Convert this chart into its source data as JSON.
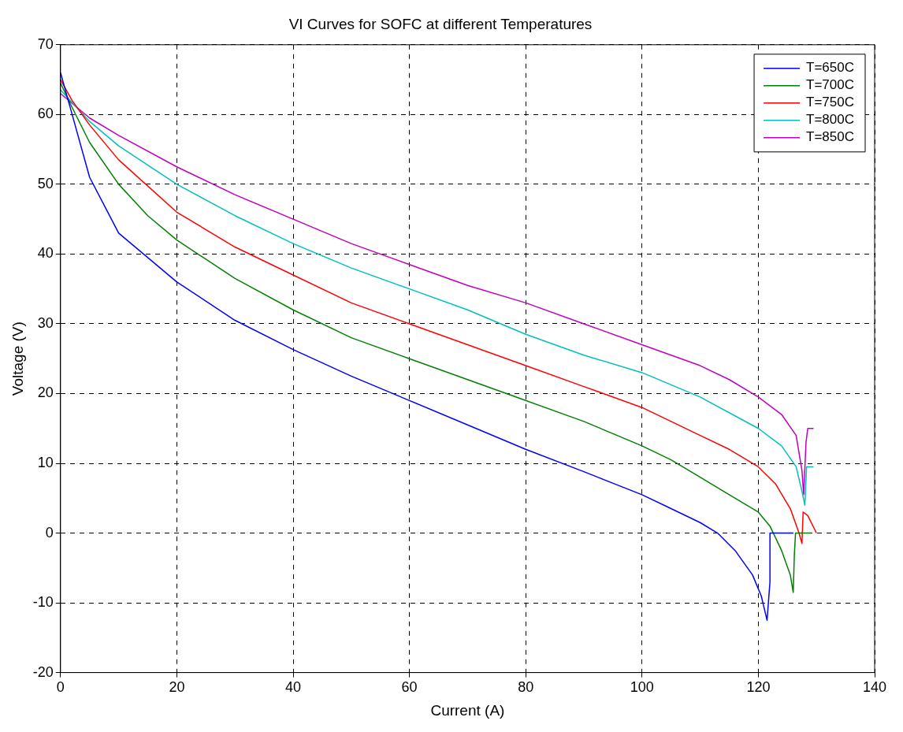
{
  "chart_data": {
    "type": "line",
    "title": "VI Curves for SOFC at different Temperatures",
    "xlabel": "Current (A)",
    "ylabel": "Voltage (V)",
    "xlim": [
      0,
      140
    ],
    "xticks": [
      0,
      20,
      40,
      60,
      80,
      100,
      120,
      140
    ],
    "ylim": [
      -20,
      70
    ],
    "yticks": [
      -20,
      -10,
      0,
      10,
      20,
      30,
      40,
      50,
      60,
      70
    ],
    "grid": true,
    "legend": "top right",
    "marker": "none",
    "line_style": "solid",
    "series": [
      {
        "name": "T=650C",
        "color": "#0000ff",
        "x": [
          0,
          2,
          5,
          10,
          15,
          20,
          30,
          40,
          50,
          60,
          70,
          80,
          90,
          100,
          105,
          110,
          113,
          116,
          119,
          120.5,
          121.5,
          122,
          122,
          126
        ],
        "values": [
          66,
          60,
          51,
          43,
          39.5,
          36,
          30.5,
          26.3,
          22.5,
          19,
          15.5,
          12,
          8.8,
          5.5,
          3.5,
          1.5,
          0,
          -2.5,
          -6,
          -9,
          -12.5,
          -7,
          0,
          0
        ]
      },
      {
        "name": "T=700C",
        "color": "#008000",
        "x": [
          0,
          2,
          5,
          10,
          15,
          20,
          30,
          40,
          50,
          60,
          70,
          80,
          90,
          100,
          105,
          110,
          115,
          120,
          122,
          124,
          125.5,
          126,
          126.2,
          126.4,
          129
        ],
        "values": [
          64.5,
          61,
          56,
          50,
          45.5,
          42,
          36.5,
          32,
          28,
          25,
          22,
          19,
          16,
          12.5,
          10.5,
          8,
          5.5,
          3,
          1,
          -2.5,
          -6,
          -8.5,
          -3,
          0,
          0
        ]
      },
      {
        "name": "T=750C",
        "color": "#ff0000",
        "x": [
          0,
          2,
          5,
          10,
          20,
          30,
          40,
          50,
          60,
          70,
          80,
          90,
          100,
          110,
          115,
          120,
          123,
          125.5,
          127,
          127.5,
          127.7,
          128.5,
          130
        ],
        "values": [
          65,
          62,
          58.5,
          53.5,
          46,
          41,
          37,
          33,
          30,
          27,
          24,
          21,
          18,
          14,
          12,
          9.5,
          7,
          3.5,
          0,
          -1.5,
          3,
          2.5,
          0
        ]
      },
      {
        "name": "T=800C",
        "color": "#00bfbf",
        "x": [
          0,
          5,
          10,
          20,
          30,
          40,
          50,
          60,
          70,
          80,
          90,
          100,
          110,
          120,
          124,
          126.5,
          127.5,
          128,
          128.3,
          129.5
        ],
        "values": [
          63.5,
          59,
          55.5,
          50,
          45.5,
          41.5,
          38,
          35,
          32,
          28.5,
          25.5,
          23,
          19.5,
          15,
          12.5,
          9.5,
          6,
          4,
          9.5,
          9.5
        ]
      },
      {
        "name": "T=850C",
        "color": "#bf00bf",
        "x": [
          0,
          5,
          10,
          20,
          30,
          40,
          50,
          60,
          70,
          80,
          90,
          100,
          110,
          115,
          120,
          124,
          126.5,
          127.5,
          127.8,
          128.2,
          128.5,
          129.5
        ],
        "values": [
          63,
          59.5,
          57,
          52.5,
          48.5,
          45,
          41.5,
          38.5,
          35.5,
          33,
          30,
          27,
          24,
          22,
          19.5,
          17,
          14,
          9,
          5.5,
          13,
          15,
          15
        ]
      }
    ]
  }
}
